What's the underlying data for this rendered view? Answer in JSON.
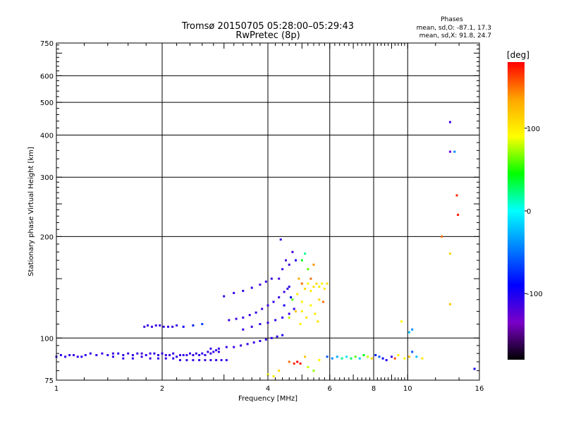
{
  "chart_data": {
    "type": "scatter",
    "title": "Tromsø 20150705 05:28:00–05:29:43",
    "subtitle": "RwPretec (8p)",
    "xlabel": "Frequency [MHz]",
    "ylabel": "Stationary phase Virtual Height [km]",
    "x_scale": "log",
    "y_scale": "log",
    "xlim": [
      1,
      16
    ],
    "ylim": [
      75,
      750
    ],
    "x_ticks": [
      1,
      2,
      4,
      6,
      8,
      10,
      16
    ],
    "y_ticks": [
      75,
      100,
      200,
      300,
      400,
      500,
      600,
      750
    ],
    "grid": true,
    "phases": {
      "heading": "Phases",
      "line_o": "mean, sd,O: -87.1, 17.3",
      "line_x": "mean, sd,X:  91.8, 24.7"
    },
    "colorbar": {
      "label": "[deg]",
      "range": [
        -180,
        180
      ],
      "ticks": [
        100,
        0,
        -100
      ],
      "colors": [
        "#ff0000",
        "#ffa500",
        "#ffff00",
        "#00ff00",
        "#00ffff",
        "#0080ff",
        "#0000ff",
        "#7b00c8",
        "#000000"
      ]
    },
    "series": [
      {
        "points": [
          [
            1.0,
            88,
            -110
          ],
          [
            1.03,
            89,
            -105
          ],
          [
            1.06,
            88,
            -110
          ],
          [
            1.09,
            89,
            -108
          ],
          [
            1.12,
            89,
            -110
          ],
          [
            1.15,
            88,
            -112
          ],
          [
            1.18,
            88,
            -105
          ],
          [
            1.21,
            89,
            -110
          ],
          [
            1.25,
            90,
            -108
          ],
          [
            1.3,
            89,
            -110
          ],
          [
            1.35,
            90,
            -112
          ],
          [
            1.4,
            89,
            -108
          ],
          [
            1.45,
            90,
            -110
          ],
          [
            1.5,
            90,
            -105
          ],
          [
            1.55,
            89,
            -110
          ],
          [
            1.6,
            90,
            -112
          ],
          [
            1.65,
            89,
            -108
          ],
          [
            1.7,
            90,
            -110
          ],
          [
            1.75,
            90,
            -115
          ],
          [
            1.8,
            89,
            -108
          ],
          [
            1.85,
            90,
            -110
          ],
          [
            1.9,
            90,
            -105
          ],
          [
            1.95,
            89,
            -110
          ],
          [
            2.0,
            90,
            -108
          ],
          [
            2.05,
            89,
            -112
          ],
          [
            2.1,
            89,
            -110
          ],
          [
            2.15,
            90,
            -108
          ],
          [
            2.2,
            88,
            -106
          ],
          [
            2.25,
            89,
            -110
          ],
          [
            2.3,
            89,
            -108
          ],
          [
            2.35,
            89,
            -112
          ],
          [
            2.4,
            90,
            -110
          ],
          [
            2.45,
            89,
            -108
          ],
          [
            2.5,
            90,
            -110
          ],
          [
            2.55,
            89,
            -105
          ],
          [
            2.6,
            90,
            -108
          ],
          [
            2.65,
            89,
            -110
          ],
          [
            2.7,
            91,
            -108
          ],
          [
            2.75,
            90,
            -112
          ],
          [
            2.8,
            91,
            -110
          ],
          [
            2.85,
            92,
            -108
          ],
          [
            2.9,
            91,
            -110
          ]
        ]
      },
      {
        "points": [
          [
            1.45,
            88,
            -108
          ],
          [
            1.55,
            87,
            -110
          ],
          [
            1.65,
            87,
            -108
          ],
          [
            1.75,
            88,
            -110
          ],
          [
            1.85,
            87,
            -112
          ],
          [
            1.95,
            87,
            -108
          ],
          [
            2.05,
            87,
            -110
          ],
          [
            2.15,
            87,
            -108
          ],
          [
            2.25,
            86,
            -110
          ],
          [
            2.35,
            86,
            -108
          ],
          [
            2.45,
            86,
            -110
          ],
          [
            2.55,
            86,
            -108
          ],
          [
            2.65,
            86,
            -112
          ],
          [
            2.75,
            86,
            -110
          ],
          [
            2.85,
            86,
            -108
          ],
          [
            2.95,
            86,
            -110
          ],
          [
            3.05,
            86,
            -108
          ]
        ]
      },
      {
        "points": [
          [
            1.78,
            108,
            -110
          ],
          [
            1.82,
            109,
            -108
          ],
          [
            1.87,
            108,
            -112
          ],
          [
            1.92,
            109,
            -110
          ],
          [
            1.97,
            109,
            -108
          ],
          [
            2.02,
            108,
            -110
          ],
          [
            2.08,
            108,
            -108
          ],
          [
            2.14,
            108,
            -112
          ],
          [
            2.2,
            109,
            -110
          ],
          [
            2.3,
            108,
            -95
          ],
          [
            2.45,
            109,
            -80
          ],
          [
            2.6,
            110,
            -70
          ]
        ]
      },
      {
        "points": [
          [
            2.75,
            93,
            -110
          ],
          [
            2.9,
            93,
            -108
          ],
          [
            3.05,
            94,
            -110
          ],
          [
            3.2,
            94,
            -112
          ],
          [
            3.35,
            95,
            -110
          ],
          [
            3.5,
            96,
            -108
          ],
          [
            3.65,
            97,
            -110
          ],
          [
            3.8,
            98,
            -105
          ],
          [
            3.95,
            99,
            -108
          ],
          [
            4.1,
            100,
            -110
          ],
          [
            4.25,
            101,
            -105
          ],
          [
            4.4,
            102,
            -100
          ]
        ]
      },
      {
        "points": [
          [
            3.1,
            113,
            -112
          ],
          [
            3.25,
            114,
            -110
          ],
          [
            3.4,
            115,
            -112
          ],
          [
            3.55,
            117,
            -110
          ],
          [
            3.7,
            119,
            -108
          ],
          [
            3.85,
            122,
            -112
          ],
          [
            4.0,
            125,
            -110
          ],
          [
            4.15,
            128,
            -108
          ],
          [
            4.3,
            132,
            -110
          ],
          [
            4.45,
            137,
            -112
          ],
          [
            4.6,
            142,
            -108
          ]
        ]
      },
      {
        "points": [
          [
            3.0,
            133,
            -112
          ],
          [
            3.2,
            136,
            -110
          ],
          [
            3.4,
            138,
            -108
          ],
          [
            3.6,
            141,
            -110
          ],
          [
            3.8,
            144,
            -112
          ],
          [
            3.95,
            147,
            -110
          ],
          [
            4.1,
            150,
            -108
          ]
        ]
      },
      {
        "points": [
          [
            3.4,
            106,
            -112
          ],
          [
            3.6,
            108,
            -110
          ],
          [
            3.8,
            110,
            -108
          ],
          [
            4.0,
            111,
            -112
          ],
          [
            4.2,
            113,
            -110
          ],
          [
            4.4,
            115,
            -108
          ],
          [
            4.6,
            118,
            -110
          ],
          [
            4.75,
            122,
            -108
          ]
        ]
      },
      {
        "points": [
          [
            4.3,
            150,
            -115
          ],
          [
            4.4,
            160,
            -112
          ],
          [
            4.5,
            170,
            -118
          ],
          [
            4.6,
            165,
            -110
          ],
          [
            4.7,
            180,
            -115
          ],
          [
            4.8,
            170,
            -100
          ],
          [
            4.35,
            196,
            -110
          ],
          [
            4.55,
            140,
            -105
          ],
          [
            4.45,
            125,
            -95
          ],
          [
            4.65,
            132,
            -90
          ]
        ]
      },
      {
        "points": [
          [
            4.7,
            130,
            60
          ],
          [
            4.85,
            135,
            100
          ],
          [
            5.0,
            128,
            95
          ],
          [
            5.1,
            140,
            110
          ],
          [
            5.2,
            145,
            95
          ],
          [
            5.3,
            138,
            100
          ],
          [
            5.4,
            142,
            105
          ],
          [
            5.5,
            145,
            110
          ],
          [
            5.6,
            142,
            100
          ],
          [
            5.7,
            145,
            95
          ],
          [
            5.8,
            140,
            100
          ],
          [
            5.9,
            145,
            105
          ],
          [
            5.0,
            120,
            100
          ],
          [
            5.15,
            115,
            105
          ],
          [
            5.3,
            125,
            95
          ],
          [
            5.45,
            118,
            100
          ],
          [
            5.55,
            112,
            105
          ],
          [
            4.95,
            110,
            95
          ],
          [
            5.2,
            160,
            60
          ],
          [
            5.0,
            170,
            40
          ],
          [
            5.1,
            178,
            20
          ],
          [
            4.9,
            150,
            130
          ],
          [
            5.3,
            150,
            150
          ],
          [
            5.4,
            165,
            140
          ],
          [
            5.0,
            145,
            150
          ],
          [
            4.8,
            120,
            120
          ],
          [
            4.6,
            115,
            80
          ],
          [
            5.6,
            130,
            110
          ],
          [
            5.75,
            128,
            150
          ]
        ]
      },
      {
        "points": [
          [
            4.0,
            78,
            90
          ],
          [
            4.15,
            77,
            100
          ],
          [
            4.3,
            80,
            110
          ],
          [
            4.6,
            85,
            150
          ],
          [
            4.75,
            84,
            170
          ],
          [
            4.85,
            85,
            180
          ],
          [
            4.95,
            84,
            175
          ],
          [
            5.1,
            88,
            120
          ],
          [
            5.2,
            82,
            80
          ],
          [
            5.4,
            80,
            70
          ],
          [
            5.6,
            86,
            90
          ],
          [
            5.9,
            88,
            -60
          ],
          [
            6.1,
            87,
            -40
          ],
          [
            6.3,
            88,
            -30
          ],
          [
            6.5,
            87,
            20
          ],
          [
            6.7,
            88,
            -10
          ],
          [
            6.9,
            87,
            30
          ],
          [
            7.1,
            88,
            60
          ],
          [
            7.3,
            87,
            -20
          ],
          [
            7.5,
            89,
            40
          ],
          [
            7.7,
            88,
            80
          ],
          [
            7.9,
            87,
            110
          ],
          [
            8.1,
            89,
            -80
          ],
          [
            8.3,
            88,
            -60
          ],
          [
            8.5,
            87,
            -90
          ],
          [
            8.7,
            86,
            -100
          ],
          [
            9.0,
            88,
            -110
          ],
          [
            9.2,
            87,
            160
          ],
          [
            9.4,
            89,
            100
          ],
          [
            9.8,
            87,
            90
          ],
          [
            10.1,
            88,
            120
          ],
          [
            10.3,
            91,
            -60
          ],
          [
            10.6,
            88,
            -20
          ],
          [
            11.0,
            87,
            100
          ],
          [
            9.6,
            112,
            90
          ],
          [
            10.3,
            106,
            -40
          ],
          [
            10.1,
            104,
            -20
          ]
        ]
      },
      {
        "points": [
          [
            12.5,
            200,
            150
          ],
          [
            13.2,
            437,
            -110
          ],
          [
            13.2,
            357,
            -130
          ],
          [
            13.6,
            357,
            -40
          ],
          [
            13.8,
            265,
            170
          ],
          [
            13.9,
            232,
            175
          ],
          [
            13.2,
            178,
            110
          ],
          [
            13.2,
            126,
            120
          ],
          [
            15.5,
            81,
            -95
          ]
        ]
      }
    ]
  }
}
